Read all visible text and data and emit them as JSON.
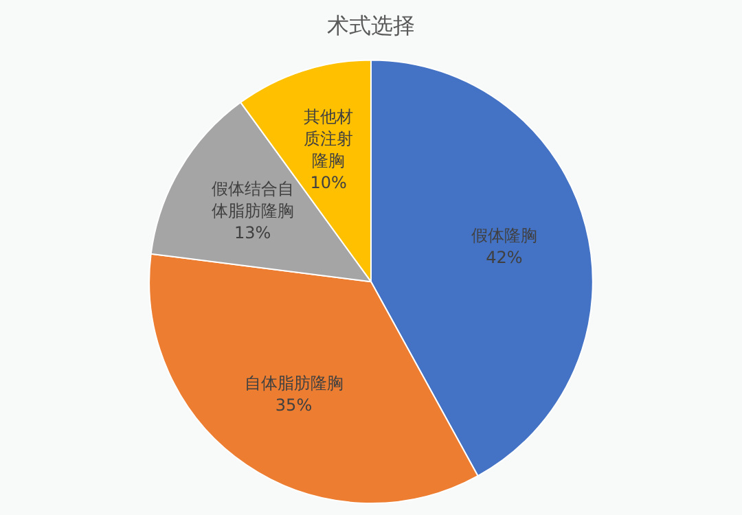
{
  "chart_data": {
    "type": "pie",
    "title": "术式选择",
    "categories": [
      "假体隆胸",
      "自体脂肪隆胸",
      "假体结合自体脂肪隆胸",
      "其他材质注射隆胸"
    ],
    "values": [
      42,
      35,
      13,
      10
    ],
    "colors": [
      "#4472c4",
      "#ed7d31",
      "#a5a5a5",
      "#ffc000"
    ],
    "value_labels": [
      "42%",
      "35%",
      "13%",
      "10%"
    ],
    "legend": false
  }
}
